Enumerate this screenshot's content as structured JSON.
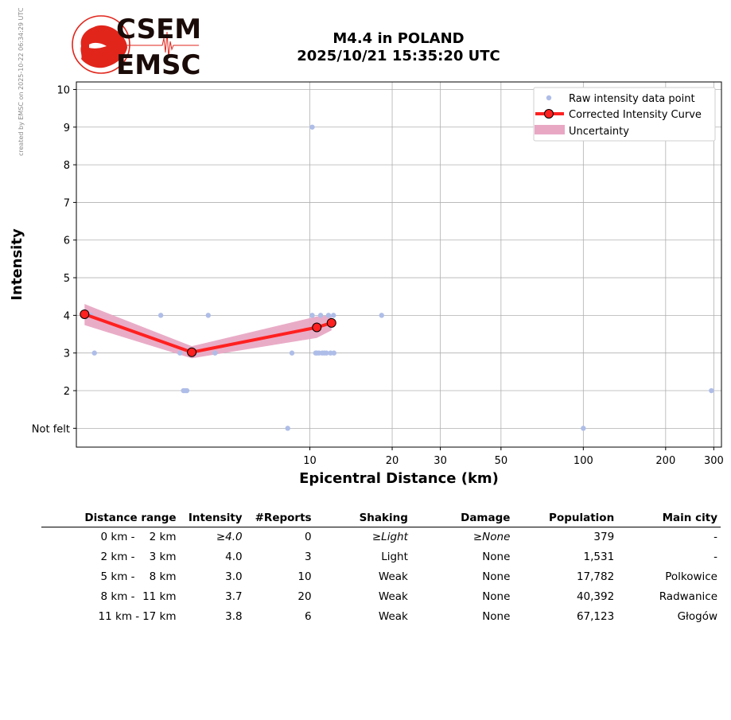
{
  "watermark": "created by EMSC on 2025-10-22 06:34:29 UTC",
  "logo": {
    "line1": "CSEM",
    "line2": "EMSC",
    "red": "#e1251b"
  },
  "chart_data": {
    "type": "scatter",
    "title": "M4.4 in POLAND",
    "subtitle": "2025/10/21 15:35:20 UTC",
    "xlabel": "Epicentral Distance (km)",
    "ylabel": "Intensity",
    "xscale": "log",
    "xlim": [
      1.4,
      320
    ],
    "ylim": [
      0.5,
      10.2
    ],
    "xticks": [
      10,
      20,
      30,
      50,
      100,
      200,
      300
    ],
    "yticks": [
      1,
      2,
      3,
      4,
      5,
      6,
      7,
      8,
      9,
      10
    ],
    "ytick_labels": [
      "Not felt",
      "2",
      "3",
      "4",
      "5",
      "6",
      "7",
      "8",
      "9",
      "10"
    ],
    "grid": true,
    "legend": {
      "placement": "top-right",
      "entries": [
        "Raw intensity data point",
        "Corrected Intensity Curve",
        "Uncertainty"
      ]
    },
    "colors": {
      "raw": "#aebde8",
      "curve": "#ff2020",
      "uncertainty": "#e8a8c4"
    },
    "raw_points": [
      [
        1.58,
        4
      ],
      [
        1.63,
        3
      ],
      [
        2.85,
        4
      ],
      [
        3.35,
        3
      ],
      [
        3.45,
        2
      ],
      [
        3.5,
        2
      ],
      [
        3.55,
        2
      ],
      [
        3.8,
        3
      ],
      [
        4.25,
        4
      ],
      [
        4.5,
        3
      ],
      [
        8.3,
        1
      ],
      [
        8.6,
        3
      ],
      [
        10.2,
        9
      ],
      [
        10.2,
        4
      ],
      [
        10.5,
        3
      ],
      [
        10.6,
        3
      ],
      [
        10.8,
        3
      ],
      [
        10.95,
        4
      ],
      [
        11.1,
        3
      ],
      [
        11.3,
        3
      ],
      [
        11.5,
        3
      ],
      [
        11.7,
        4
      ],
      [
        11.9,
        3
      ],
      [
        12.2,
        4
      ],
      [
        12.25,
        3
      ],
      [
        18.3,
        4
      ],
      [
        100,
        1
      ],
      [
        294,
        2
      ]
    ],
    "corrected_curve": [
      [
        1.5,
        4.03
      ],
      [
        3.7,
        3.02
      ],
      [
        10.6,
        3.68
      ],
      [
        12.0,
        3.8
      ]
    ],
    "uncertainty_band": {
      "x": [
        1.5,
        3.7,
        10.6,
        12.0
      ],
      "upper": [
        4.3,
        3.18,
        3.97,
        4.0
      ],
      "lower": [
        3.74,
        2.86,
        3.4,
        3.6
      ]
    }
  },
  "table": {
    "headers": [
      "Distance range",
      "Intensity",
      "#Reports",
      "Shaking",
      "Damage",
      "Population",
      "Main city"
    ],
    "rows": [
      {
        "from": "0 km -",
        "to": "2 km",
        "intensity": "≥4.0",
        "reports": "0",
        "shaking": "≥Light",
        "damage": "≥None",
        "population": "379",
        "city": "-",
        "italic": true
      },
      {
        "from": "2 km -",
        "to": "3 km",
        "intensity": "4.0",
        "reports": "3",
        "shaking": "Light",
        "damage": "None",
        "population": "1,531",
        "city": "-",
        "italic": false
      },
      {
        "from": "5 km -",
        "to": "8 km",
        "intensity": "3.0",
        "reports": "10",
        "shaking": "Weak",
        "damage": "None",
        "population": "17,782",
        "city": "Polkowice",
        "italic": false
      },
      {
        "from": "8 km -",
        "to": "11 km",
        "intensity": "3.7",
        "reports": "20",
        "shaking": "Weak",
        "damage": "None",
        "population": "40,392",
        "city": "Radwanice",
        "italic": false
      },
      {
        "from": "11 km -",
        "to": "17 km",
        "intensity": "3.8",
        "reports": "6",
        "shaking": "Weak",
        "damage": "None",
        "population": "67,123",
        "city": "Głogów",
        "italic": false
      }
    ]
  }
}
